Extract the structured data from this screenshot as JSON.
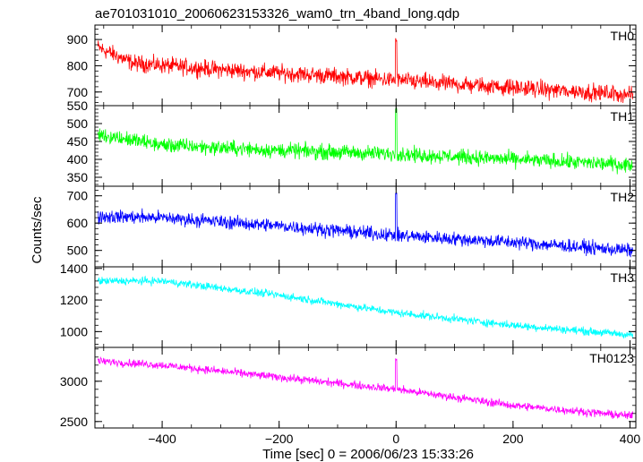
{
  "chart_data": {
    "type": "line",
    "title": "ae701031010_20060623153326_wam0_trn_4band_long.qdp",
    "xlabel": "Time [sec] 0 = 2006/06/23 15:33:26",
    "ylabel": "Counts/sec",
    "xlim": [
      -515,
      410
    ],
    "xticks": [
      -400,
      -200,
      0,
      200,
      400
    ],
    "xtick_labels": [
      "−400",
      "−200",
      "0",
      "200",
      "400"
    ],
    "grid": false,
    "panels": [
      {
        "name": "TH0",
        "color": "#ff0000",
        "ylim": [
          648,
          955
        ],
        "yticks": [
          700,
          800,
          900
        ],
        "ytick_labels": [
          "700",
          "800",
          "900"
        ],
        "trend": [
          [
            -510,
            870
          ],
          [
            -450,
            810
          ],
          [
            -300,
            785
          ],
          [
            -100,
            760
          ],
          [
            100,
            730
          ],
          [
            400,
            690
          ]
        ],
        "noise": 45,
        "spike": {
          "x": 0,
          "y": 905
        },
        "values_description": "counts decrease from ~870 to ~690 over time with spike near t=0"
      },
      {
        "name": "TH1",
        "color": "#00ff00",
        "ylim": [
          325,
          550
        ],
        "yticks": [
          350,
          400,
          450,
          500,
          550
        ],
        "ytick_labels": [
          "350",
          "400",
          "450",
          "500",
          "550"
        ],
        "trend": [
          [
            -510,
            470
          ],
          [
            -400,
            440
          ],
          [
            -200,
            425
          ],
          [
            0,
            415
          ],
          [
            200,
            400
          ],
          [
            400,
            385
          ]
        ],
        "noise": 30,
        "spike": {
          "x": 0,
          "y": 545
        },
        "values_description": "counts decrease from ~470 to ~385"
      },
      {
        "name": "TH2",
        "color": "#0000ff",
        "ylim": [
          440,
          735
        ],
        "yticks": [
          500,
          600,
          700
        ],
        "ytick_labels": [
          "500",
          "600",
          "700"
        ],
        "trend": [
          [
            -510,
            625
          ],
          [
            -400,
            620
          ],
          [
            -200,
            590
          ],
          [
            0,
            555
          ],
          [
            200,
            530
          ],
          [
            400,
            500
          ]
        ],
        "noise": 35,
        "spike": {
          "x": 0,
          "y": 720
        },
        "values_description": "counts decrease from ~625 to ~500"
      },
      {
        "name": "TH3",
        "color": "#00ffff",
        "ylim": [
          900,
          1410
        ],
        "yticks": [
          1000,
          1200,
          1400
        ],
        "ytick_labels": [
          "1000",
          "1200",
          "1400"
        ],
        "trend": [
          [
            -510,
            1320
          ],
          [
            -400,
            1320
          ],
          [
            -200,
            1230
          ],
          [
            0,
            1120
          ],
          [
            200,
            1040
          ],
          [
            400,
            980
          ]
        ],
        "noise": 35,
        "spike": null,
        "values_description": "counts decrease from ~1320 to ~980"
      },
      {
        "name": "TH0123",
        "color": "#ff00ff",
        "ylim": [
          2420,
          3420
        ],
        "yticks": [
          2500,
          3000
        ],
        "ytick_labels": [
          "2500",
          "3000"
        ],
        "trend": [
          [
            -510,
            3250
          ],
          [
            -400,
            3200
          ],
          [
            -200,
            3050
          ],
          [
            0,
            2900
          ],
          [
            200,
            2700
          ],
          [
            400,
            2570
          ]
        ],
        "noise": 70,
        "spike": {
          "x": 0,
          "y": 3290
        },
        "values_description": "counts decrease from ~3250 to ~2570"
      }
    ]
  }
}
